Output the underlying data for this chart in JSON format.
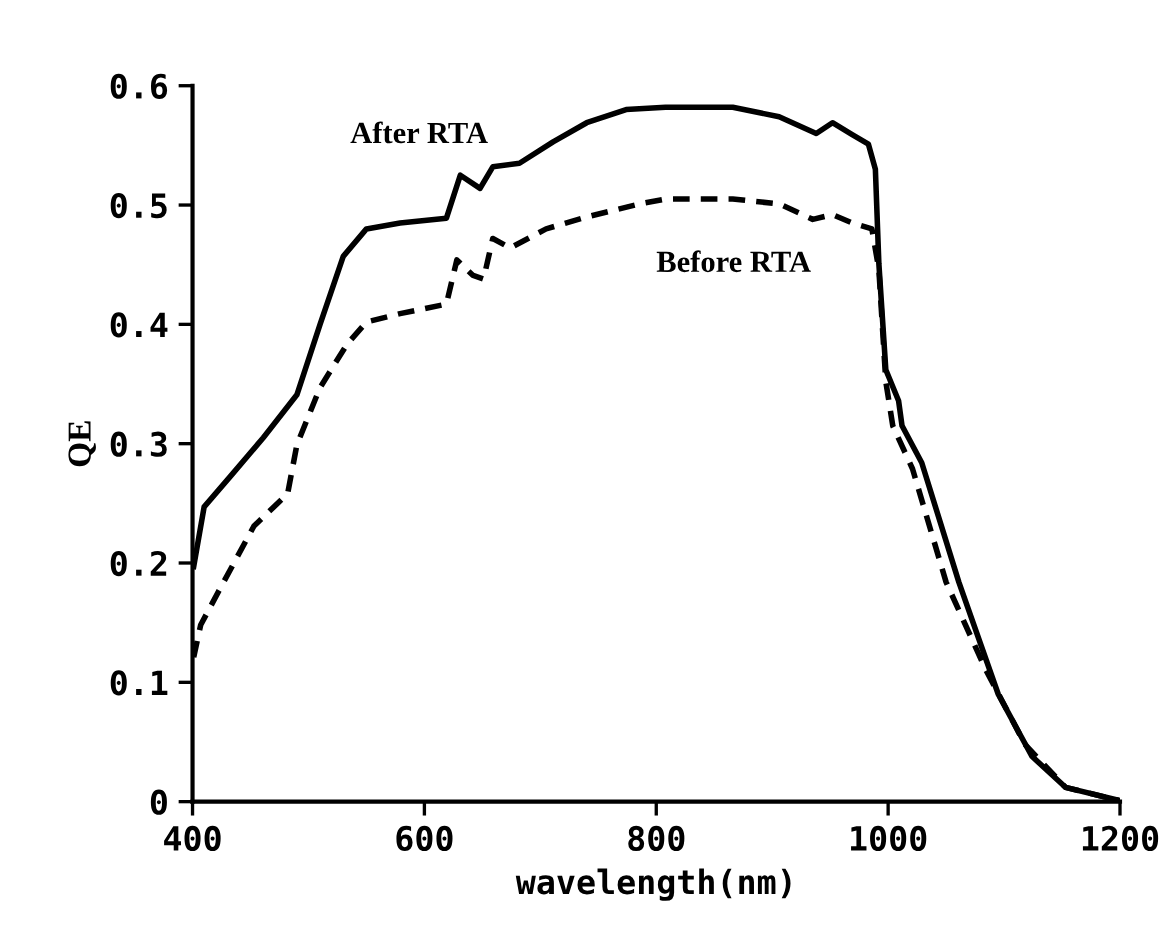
{
  "chart_data": {
    "type": "line",
    "xlabel": "wavelength(nm)",
    "ylabel": "QE",
    "xlim": [
      400,
      1200
    ],
    "xticks": [
      400,
      600,
      800,
      1000,
      1200
    ],
    "ylim": [
      0,
      0.6
    ],
    "yticks": [
      0,
      0.1,
      0.2,
      0.3,
      0.4,
      0.5,
      0.6
    ],
    "grid": false,
    "legend": false,
    "series": [
      {
        "name": "After RTA",
        "color": "#000000",
        "line_style": "solid",
        "x": [
          401,
          410,
          433,
          461,
          490,
          510,
          530,
          550,
          579,
          619,
          631,
          648,
          659,
          682,
          711,
          740,
          774,
          808,
          866,
          906,
          938,
          952,
          969,
          983,
          989,
          992,
          998,
          1009,
          1012,
          1029,
          1061,
          1095,
          1124,
          1153,
          1199
        ],
        "values": [
          0.197,
          0.247,
          0.273,
          0.305,
          0.341,
          0.4,
          0.457,
          0.48,
          0.485,
          0.489,
          0.525,
          0.514,
          0.532,
          0.535,
          0.553,
          0.569,
          0.58,
          0.582,
          0.582,
          0.574,
          0.56,
          0.569,
          0.559,
          0.551,
          0.53,
          0.451,
          0.362,
          0.336,
          0.315,
          0.284,
          0.184,
          0.09,
          0.038,
          0.012,
          0.001
        ]
      },
      {
        "name": "Before RTA",
        "color": "#000000",
        "line_style": "dashed",
        "x": [
          401,
          407,
          424,
          453,
          482,
          490,
          510,
          533,
          550,
          579,
          619,
          628,
          642,
          651,
          659,
          674,
          705,
          740,
          786,
          808,
          866,
          906,
          935,
          952,
          969,
          986,
          992,
          998,
          1004,
          1021,
          1050,
          1084,
          1118,
          1153,
          1199
        ],
        "values": [
          0.121,
          0.148,
          0.179,
          0.231,
          0.258,
          0.299,
          0.347,
          0.383,
          0.402,
          0.409,
          0.417,
          0.454,
          0.441,
          0.438,
          0.472,
          0.464,
          0.48,
          0.49,
          0.501,
          0.505,
          0.505,
          0.501,
          0.488,
          0.492,
          0.485,
          0.48,
          0.446,
          0.352,
          0.315,
          0.279,
          0.184,
          0.111,
          0.048,
          0.012,
          0.001
        ]
      }
    ]
  }
}
